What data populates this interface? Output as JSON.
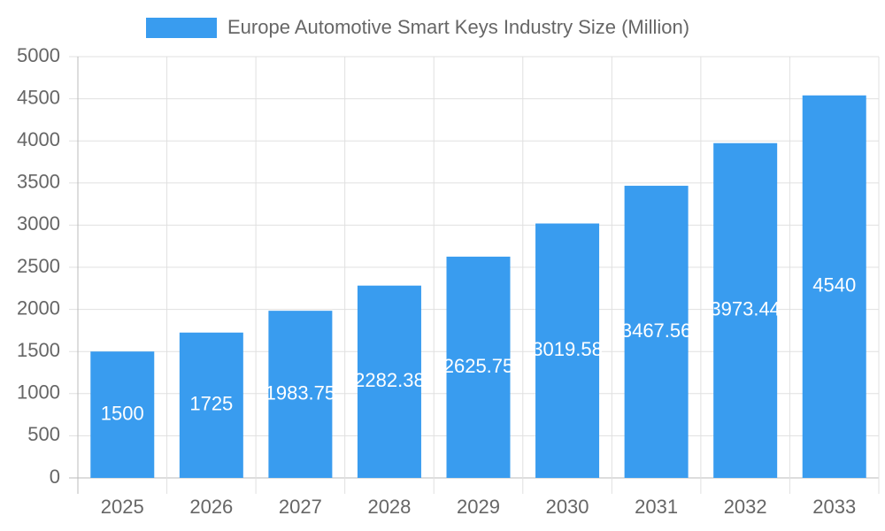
{
  "chart_data": {
    "type": "bar",
    "categories": [
      "2025",
      "2026",
      "2027",
      "2028",
      "2029",
      "2030",
      "2031",
      "2032",
      "2033"
    ],
    "series": [
      {
        "name": "Europe Automotive Smart Keys Industry Size (Million)",
        "color": "#399cef",
        "values": [
          1500,
          1725,
          1983.75,
          2282.38,
          2625.75,
          3019.58,
          3467.56,
          3973.44,
          4540
        ]
      }
    ],
    "ylim": [
      0,
      5000
    ],
    "yticks": [
      0,
      500,
      1000,
      1500,
      2000,
      2500,
      3000,
      3500,
      4000,
      4500,
      5000
    ],
    "grid": true,
    "legend": "top"
  }
}
